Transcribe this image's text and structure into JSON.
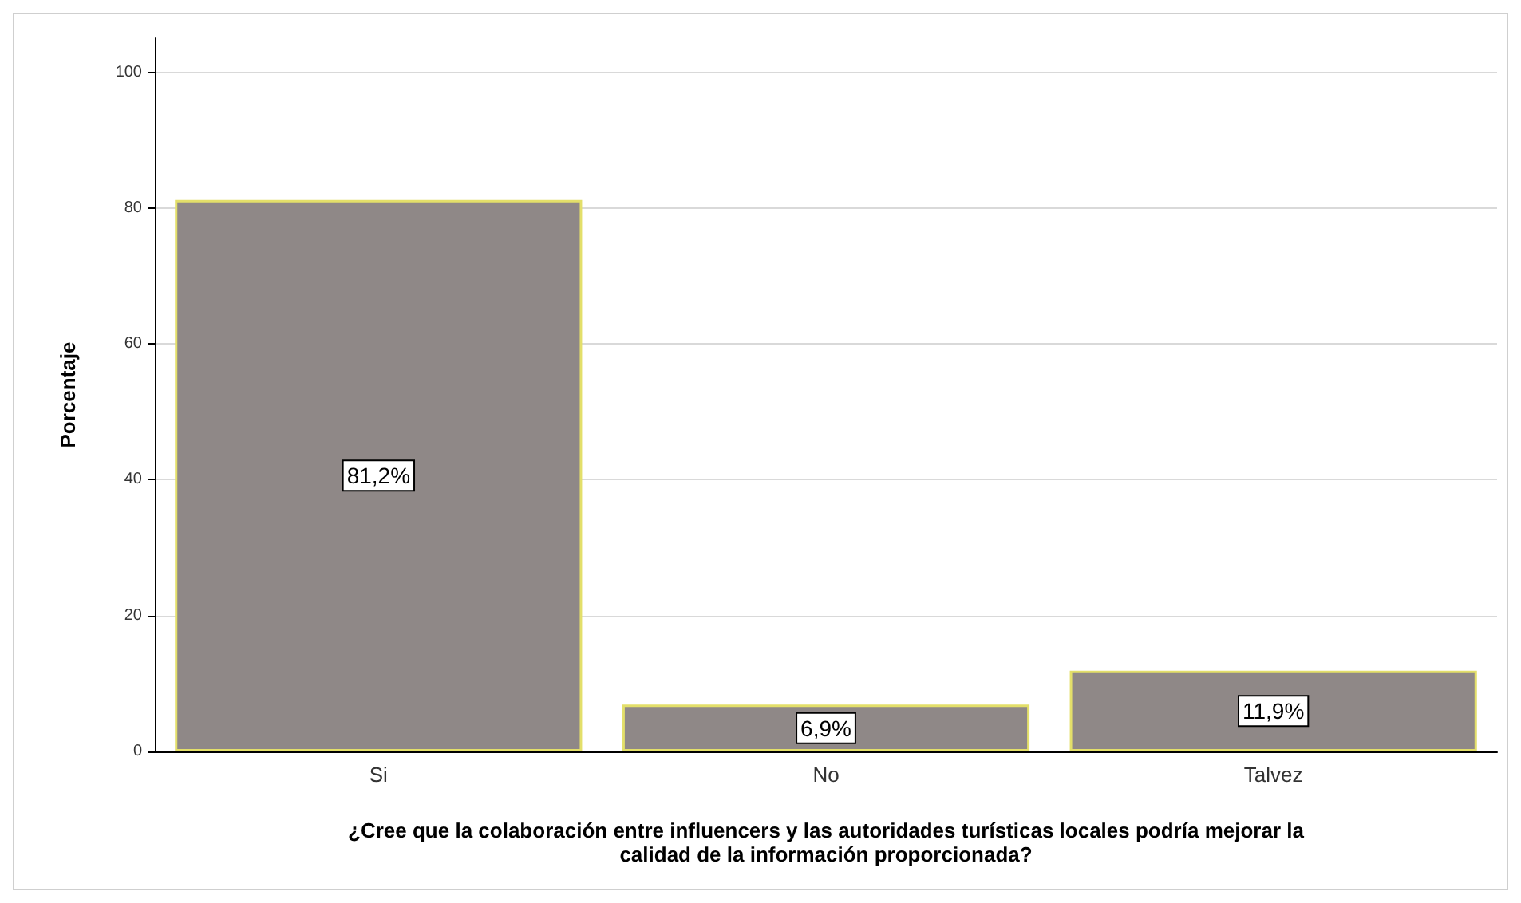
{
  "chart_data": {
    "type": "bar",
    "categories": [
      "Si",
      "No",
      "Talvez"
    ],
    "values": [
      81.2,
      6.9,
      11.9
    ],
    "value_labels": [
      "81,2%",
      "6,9%",
      "11,9%"
    ],
    "color": "#8f8887",
    "ylabel": "Porcentaje",
    "xlabel": "¿Cree que la colaboración entre influencers y las autoridades turísticas locales podría mejorar la\ncalidad de la información proporcionada?",
    "ylim": [
      0,
      105
    ],
    "yticks": [
      0,
      20,
      40,
      60,
      80,
      100
    ],
    "grid": "y"
  }
}
